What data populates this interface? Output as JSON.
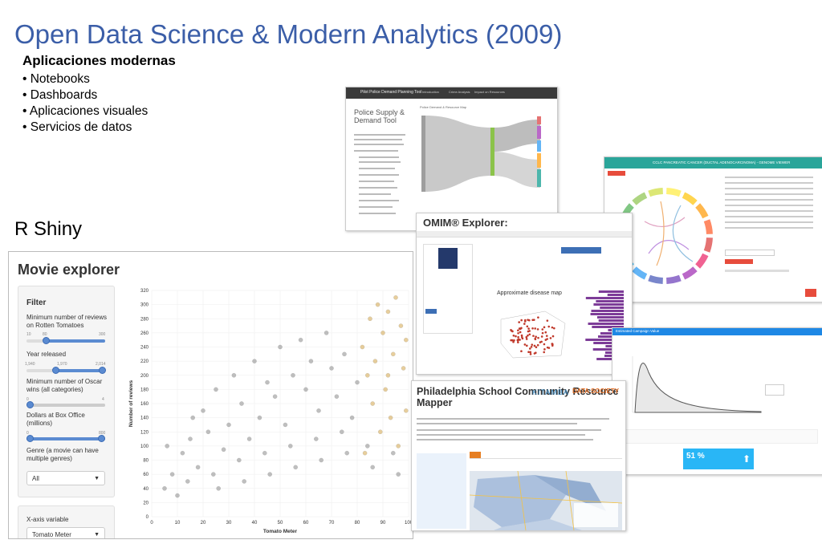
{
  "slide": {
    "title": "Open Data Science & Modern Analytics (2009)",
    "subheading": "Aplicaciones modernas",
    "bullets": [
      "Notebooks",
      "Dashboards",
      "Aplicaciones visuales",
      "Servicios de datos"
    ],
    "section_label": "R Shiny"
  },
  "movie_explorer": {
    "title": "Movie explorer",
    "filter_heading": "Filter",
    "reviews_label": "Minimum number of reviews on Rotten Tomatoes",
    "reviews_ticks": [
      "10",
      "80",
      "300"
    ],
    "year_label": "Year released",
    "year_ticks": [
      "1,940",
      "1,970",
      "2,014"
    ],
    "oscar_label": "Minimum number of Oscar wins (all categories)",
    "oscar_ticks": [
      "0",
      "4"
    ],
    "boxoffice_label": "Dollars at Box Office (millions)",
    "boxoffice_ticks": [
      "0",
      "800"
    ],
    "genre_label": "Genre (a movie can have multiple genres)",
    "genre_value": "All",
    "xvar_label": "X-axis variable",
    "xvar_value": "Tomato Meter",
    "colors": {
      "gray_points": "#8a8a8a",
      "gold_points": "#d4a64a",
      "slider": "#5b8bd1"
    }
  },
  "chart_data": {
    "type": "scatter",
    "xlabel": "Tomato Meter",
    "ylabel": "Number of reviews",
    "xlim": [
      0,
      100
    ],
    "ylim": [
      0,
      320
    ],
    "x_ticks": [
      0,
      10,
      20,
      30,
      40,
      50,
      60,
      70,
      80,
      90,
      100
    ],
    "y_ticks": [
      0,
      20,
      40,
      60,
      80,
      100,
      120,
      140,
      160,
      180,
      200,
      220,
      240,
      260,
      280,
      300,
      320
    ],
    "series": [
      {
        "color": "#8a8a8a",
        "points": [
          [
            5,
            40
          ],
          [
            8,
            60
          ],
          [
            12,
            90
          ],
          [
            15,
            110
          ],
          [
            18,
            70
          ],
          [
            20,
            150
          ],
          [
            22,
            120
          ],
          [
            25,
            180
          ],
          [
            28,
            95
          ],
          [
            30,
            130
          ],
          [
            32,
            200
          ],
          [
            35,
            160
          ],
          [
            38,
            110
          ],
          [
            40,
            220
          ],
          [
            42,
            140
          ],
          [
            45,
            190
          ],
          [
            48,
            170
          ],
          [
            50,
            240
          ],
          [
            52,
            130
          ],
          [
            55,
            200
          ],
          [
            58,
            250
          ],
          [
            60,
            180
          ],
          [
            62,
            220
          ],
          [
            65,
            150
          ],
          [
            68,
            260
          ],
          [
            70,
            210
          ],
          [
            72,
            170
          ],
          [
            75,
            230
          ],
          [
            78,
            140
          ],
          [
            80,
            190
          ],
          [
            10,
            30
          ],
          [
            14,
            50
          ],
          [
            24,
            60
          ],
          [
            34,
            80
          ],
          [
            44,
            90
          ],
          [
            54,
            100
          ],
          [
            64,
            110
          ],
          [
            74,
            120
          ],
          [
            84,
            100
          ],
          [
            94,
            90
          ],
          [
            6,
            100
          ],
          [
            16,
            140
          ],
          [
            26,
            40
          ],
          [
            36,
            50
          ],
          [
            46,
            60
          ],
          [
            56,
            70
          ],
          [
            66,
            80
          ],
          [
            76,
            90
          ],
          [
            86,
            70
          ],
          [
            96,
            60
          ]
        ]
      },
      {
        "color": "#d4a64a",
        "points": [
          [
            82,
            240
          ],
          [
            85,
            280
          ],
          [
            88,
            300
          ],
          [
            90,
            260
          ],
          [
            92,
            290
          ],
          [
            95,
            310
          ],
          [
            97,
            270
          ],
          [
            99,
            250
          ],
          [
            84,
            200
          ],
          [
            87,
            220
          ],
          [
            91,
            180
          ],
          [
            94,
            230
          ],
          [
            98,
            210
          ],
          [
            86,
            160
          ],
          [
            93,
            140
          ],
          [
            89,
            120
          ],
          [
            96,
            100
          ],
          [
            83,
            90
          ],
          [
            99,
            150
          ],
          [
            92,
            200
          ]
        ]
      }
    ]
  },
  "police_tool": {
    "bar_title": "Pilot Police Demand Planning Tool",
    "tabs": [
      "Introduction",
      "Crime Analysis",
      "Impact on Resources"
    ],
    "heading": "Police Supply & Demand Tool",
    "map_label": "Police Demand & Resource Map"
  },
  "circos": {
    "header": "CCLC PANCREATIC CANCER (DUCTAL ADENOCARCINOMA) - GENOME VIEWER"
  },
  "omim": {
    "logo": "OMIM® Explorer:",
    "map_label": "Approximate disease map"
  },
  "curve_app": {
    "header": "Estimated Campaign Value",
    "percent": "51 %"
  },
  "philly": {
    "title": "Philadelphia School Community Resource Mapper",
    "kitamba": "KITAMBA",
    "datasociety": "DATA SOCIETY"
  }
}
